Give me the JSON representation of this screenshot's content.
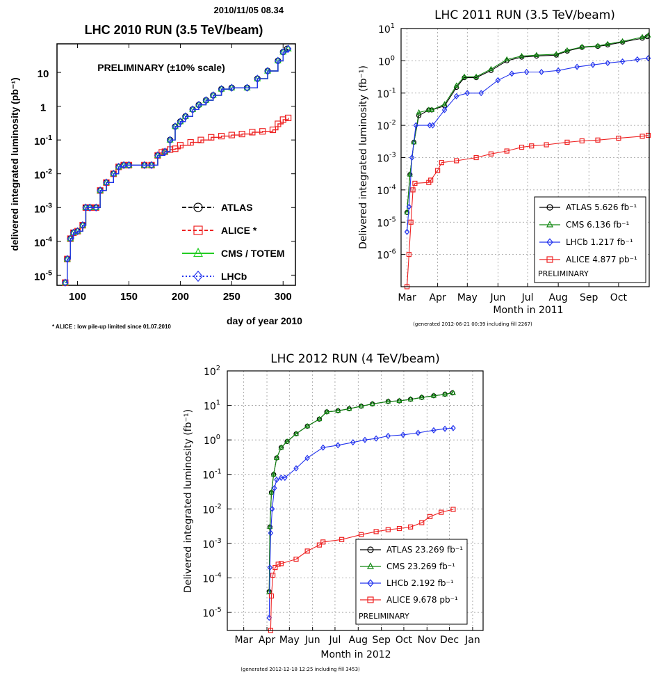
{
  "chart_data": [
    {
      "type": "line",
      "timestamp": "2010/11/05   08.34",
      "title": "LHC 2010 RUN (3.5 TeV/beam)",
      "subtitle": "PRELIMINARY (±10% scale)",
      "xlabel": "day of year 2010",
      "ylabel": "delivered integrated luminosity (pb⁻¹)",
      "footnote": "* ALICE : low pile-up limited since 01.07.2010",
      "y_scale": "log",
      "xlim": [
        80,
        312
      ],
      "ylim": [
        5e-06,
        70
      ],
      "x_ticks": [
        100,
        150,
        200,
        250,
        300
      ],
      "y_ticks": [
        {
          "value": 1e-05,
          "base": "10",
          "exp": "-5"
        },
        {
          "value": 0.0001,
          "base": "10",
          "exp": "-4"
        },
        {
          "value": 0.001,
          "base": "10",
          "exp": "-3"
        },
        {
          "value": 0.01,
          "base": "10",
          "exp": "-2"
        },
        {
          "value": 0.1,
          "base": "10",
          "exp": "-1"
        },
        {
          "value": 1,
          "base": "1",
          "exp": ""
        },
        {
          "value": 10,
          "base": "10",
          "exp": ""
        }
      ],
      "legend_position": "lower-right",
      "grid": false,
      "series": [
        {
          "name": "ATLAS",
          "color": "#000000",
          "marker": "circle",
          "x": [
            88,
            90,
            93,
            96,
            100,
            105,
            108,
            112,
            118,
            122,
            128,
            135,
            140,
            145,
            150,
            165,
            172,
            178,
            185,
            190,
            195,
            200,
            205,
            212,
            218,
            225,
            232,
            240,
            250,
            265,
            275,
            285,
            295,
            300,
            304
          ],
          "y": [
            6e-06,
            3e-05,
            0.00012,
            0.00018,
            0.0002,
            0.0003,
            0.001,
            0.001,
            0.001,
            0.0032,
            0.0055,
            0.01,
            0.016,
            0.018,
            0.018,
            0.018,
            0.018,
            0.035,
            0.045,
            0.1,
            0.25,
            0.35,
            0.5,
            0.8,
            1.1,
            1.5,
            2.1,
            3.2,
            3.5,
            3.5,
            6.5,
            11,
            22,
            40,
            50
          ]
        },
        {
          "name": "ALICE *",
          "color": "#ee2222",
          "marker": "square",
          "x": [
            88,
            90,
            93,
            96,
            100,
            105,
            108,
            112,
            118,
            122,
            128,
            135,
            140,
            145,
            150,
            165,
            172,
            178,
            182,
            185,
            190,
            195,
            200,
            210,
            220,
            230,
            240,
            250,
            260,
            270,
            280,
            290,
            295,
            300,
            305
          ],
          "y": [
            6e-06,
            3e-05,
            0.00012,
            0.00018,
            0.0002,
            0.0003,
            0.001,
            0.001,
            0.001,
            0.0032,
            0.0055,
            0.01,
            0.016,
            0.018,
            0.018,
            0.018,
            0.018,
            0.035,
            0.043,
            0.045,
            0.052,
            0.055,
            0.07,
            0.085,
            0.1,
            0.12,
            0.13,
            0.14,
            0.15,
            0.17,
            0.18,
            0.2,
            0.3,
            0.4,
            0.45
          ]
        },
        {
          "name": "CMS / TOTEM",
          "color": "#22cc22",
          "marker": "triangle",
          "x": [
            88,
            90,
            93,
            96,
            100,
            105,
            108,
            112,
            118,
            122,
            128,
            135,
            140,
            145,
            150,
            165,
            172,
            178,
            185,
            190,
            195,
            200,
            205,
            212,
            218,
            225,
            232,
            240,
            250,
            265,
            275,
            285,
            295,
            300,
            305
          ],
          "y": [
            6e-06,
            3e-05,
            0.00012,
            0.00018,
            0.0002,
            0.0003,
            0.001,
            0.001,
            0.001,
            0.0032,
            0.0055,
            0.01,
            0.016,
            0.018,
            0.018,
            0.018,
            0.018,
            0.035,
            0.045,
            0.1,
            0.25,
            0.35,
            0.5,
            0.8,
            1.1,
            1.5,
            2.1,
            3.2,
            3.5,
            3.5,
            6.5,
            11,
            22,
            40,
            50
          ]
        },
        {
          "name": "LHCb",
          "color": "#2233ee",
          "marker": "diamond",
          "x": [
            88,
            90,
            93,
            96,
            100,
            105,
            108,
            112,
            118,
            122,
            128,
            135,
            140,
            145,
            150,
            165,
            172,
            178,
            185,
            190,
            195,
            200,
            205,
            212,
            218,
            225,
            232,
            240,
            250,
            265,
            275,
            285,
            295,
            300,
            305
          ],
          "y": [
            6e-06,
            3e-05,
            0.00012,
            0.00018,
            0.0002,
            0.0003,
            0.001,
            0.001,
            0.001,
            0.0032,
            0.0055,
            0.01,
            0.016,
            0.018,
            0.018,
            0.018,
            0.018,
            0.035,
            0.045,
            0.1,
            0.25,
            0.35,
            0.5,
            0.8,
            1.1,
            1.5,
            2.1,
            3.2,
            3.5,
            3.5,
            6.5,
            11,
            22,
            40,
            50
          ]
        }
      ]
    },
    {
      "type": "line",
      "title": "LHC 2011 RUN (3.5 TeV/beam)",
      "xlabel": "Month in 2011",
      "ylabel": "Delivered integrated luminosity (fb⁻¹)",
      "footnote": "(generated 2012-06-21 00:39 including fill 2267)",
      "y_scale": "log",
      "xlim": [
        "2011-02-23",
        "2011-11-01"
      ],
      "ylim": [
        1e-07,
        10
      ],
      "x_ticks": [
        {
          "label": "Mar",
          "date": "2011-03-01"
        },
        {
          "label": "Apr",
          "date": "2011-04-01"
        },
        {
          "label": "May",
          "date": "2011-05-01"
        },
        {
          "label": "Jun",
          "date": "2011-06-01"
        },
        {
          "label": "Jul",
          "date": "2011-07-01"
        },
        {
          "label": "Aug",
          "date": "2011-08-01"
        },
        {
          "label": "Sep",
          "date": "2011-09-01"
        },
        {
          "label": "Oct",
          "date": "2011-10-01"
        }
      ],
      "y_ticks": [
        {
          "value": 1e-06,
          "base": "10",
          "exp": "-6"
        },
        {
          "value": 1e-05,
          "base": "10",
          "exp": "-5"
        },
        {
          "value": 0.0001,
          "base": "10",
          "exp": "-4"
        },
        {
          "value": 0.001,
          "base": "10",
          "exp": "-3"
        },
        {
          "value": 0.01,
          "base": "10",
          "exp": "-2"
        },
        {
          "value": 0.1,
          "base": "10",
          "exp": "-1"
        },
        {
          "value": 1,
          "base": "10",
          "exp": "0"
        },
        {
          "value": 10,
          "base": "10",
          "exp": "1"
        }
      ],
      "legend_position": "lower-right",
      "legend_note": "PRELIMINARY",
      "grid": true,
      "series": [
        {
          "name": "ATLAS 5.626 fb⁻¹",
          "color": "#000000",
          "marker": "circle",
          "x": [
            "2011-03-01",
            "2011-03-04",
            "2011-03-08",
            "2011-03-13",
            "2011-03-23",
            "2011-03-26",
            "2011-04-08",
            "2011-04-20",
            "2011-04-28",
            "2011-05-10",
            "2011-05-25",
            "2011-06-10",
            "2011-06-25",
            "2011-07-10",
            "2011-07-30",
            "2011-08-10",
            "2011-08-25",
            "2011-09-10",
            "2011-09-20",
            "2011-10-05",
            "2011-10-25",
            "2011-10-30"
          ],
          "y": [
            2e-05,
            0.0003,
            0.003,
            0.02,
            0.03,
            0.03,
            0.04,
            0.15,
            0.3,
            0.3,
            0.5,
            1.0,
            1.3,
            1.4,
            1.5,
            2.0,
            2.6,
            2.8,
            3.1,
            3.8,
            5.0,
            5.6
          ]
        },
        {
          "name": "CMS 6.136 fb⁻¹",
          "color": "#118811",
          "marker": "triangle",
          "x": [
            "2011-03-01",
            "2011-03-04",
            "2011-03-08",
            "2011-03-13",
            "2011-03-23",
            "2011-03-26",
            "2011-04-08",
            "2011-04-20",
            "2011-04-28",
            "2011-05-10",
            "2011-05-25",
            "2011-06-10",
            "2011-06-25",
            "2011-07-10",
            "2011-07-30",
            "2011-08-10",
            "2011-08-25",
            "2011-09-10",
            "2011-09-20",
            "2011-10-05",
            "2011-10-25",
            "2011-10-31"
          ],
          "y": [
            2e-05,
            0.0003,
            0.003,
            0.025,
            0.03,
            0.03,
            0.045,
            0.17,
            0.32,
            0.32,
            0.55,
            1.1,
            1.4,
            1.5,
            1.6,
            2.1,
            2.7,
            2.9,
            3.3,
            4.0,
            5.4,
            6.1
          ]
        },
        {
          "name": "LHCb 1.217 fb⁻¹",
          "color": "#2233ee",
          "marker": "diamond",
          "x": [
            "2011-03-01",
            "2011-03-03",
            "2011-03-06",
            "2011-03-10",
            "2011-03-24",
            "2011-03-27",
            "2011-04-08",
            "2011-04-20",
            "2011-05-01",
            "2011-05-15",
            "2011-06-01",
            "2011-06-15",
            "2011-06-30",
            "2011-07-15",
            "2011-08-01",
            "2011-08-20",
            "2011-09-05",
            "2011-09-20",
            "2011-10-05",
            "2011-10-20",
            "2011-10-31"
          ],
          "y": [
            5e-06,
            3e-05,
            0.001,
            0.01,
            0.01,
            0.01,
            0.03,
            0.08,
            0.1,
            0.1,
            0.25,
            0.4,
            0.45,
            0.45,
            0.5,
            0.65,
            0.75,
            0.85,
            0.95,
            1.1,
            1.2
          ]
        },
        {
          "name": "ALICE 4.877 pb⁻¹",
          "color": "#ee2222",
          "marker": "square",
          "x": [
            "2011-03-01",
            "2011-03-03",
            "2011-03-05",
            "2011-03-07",
            "2011-03-09",
            "2011-03-23",
            "2011-03-25",
            "2011-04-01",
            "2011-04-05",
            "2011-04-20",
            "2011-05-10",
            "2011-05-25",
            "2011-06-10",
            "2011-06-25",
            "2011-07-05",
            "2011-07-20",
            "2011-08-10",
            "2011-08-25",
            "2011-09-10",
            "2011-10-01",
            "2011-10-25",
            "2011-10-31"
          ],
          "y": [
            1e-07,
            1e-06,
            1e-05,
            0.0001,
            0.00016,
            0.00017,
            0.0002,
            0.0004,
            0.0007,
            0.0008,
            0.001,
            0.0013,
            0.0016,
            0.0021,
            0.0023,
            0.0025,
            0.003,
            0.0033,
            0.0035,
            0.004,
            0.0046,
            0.0049
          ]
        }
      ]
    },
    {
      "type": "line",
      "title": "LHC 2012 RUN (4 TeV/beam)",
      "xlabel": "Month in 2012",
      "ylabel": "Delivered integrated luminosity (fb⁻¹)",
      "footnote": "(generated 2012-12-18 12:25 including fill 3453)",
      "y_scale": "log",
      "xlim": [
        "2012-02-08",
        "2013-01-15"
      ],
      "ylim": [
        3e-06,
        100
      ],
      "x_ticks": [
        {
          "label": "Mar",
          "date": "2012-03-01"
        },
        {
          "label": "Apr",
          "date": "2012-04-01"
        },
        {
          "label": "May",
          "date": "2012-05-01"
        },
        {
          "label": "Jun",
          "date": "2012-06-01"
        },
        {
          "label": "Jul",
          "date": "2012-07-01"
        },
        {
          "label": "Aug",
          "date": "2012-08-01"
        },
        {
          "label": "Sep",
          "date": "2012-09-01"
        },
        {
          "label": "Oct",
          "date": "2012-10-01"
        },
        {
          "label": "Nov",
          "date": "2012-11-01"
        },
        {
          "label": "Dec",
          "date": "2012-12-01"
        },
        {
          "label": "Jan",
          "date": "2013-01-01"
        }
      ],
      "y_ticks": [
        {
          "value": 1e-05,
          "base": "10",
          "exp": "-5"
        },
        {
          "value": 0.0001,
          "base": "10",
          "exp": "-4"
        },
        {
          "value": 0.001,
          "base": "10",
          "exp": "-3"
        },
        {
          "value": 0.01,
          "base": "10",
          "exp": "-2"
        },
        {
          "value": 0.1,
          "base": "10",
          "exp": "-1"
        },
        {
          "value": 1,
          "base": "10",
          "exp": "0"
        },
        {
          "value": 10,
          "base": "10",
          "exp": "1"
        },
        {
          "value": 100,
          "base": "10",
          "exp": "2"
        }
      ],
      "legend_position": "lower-right",
      "legend_note": "PRELIMINARY",
      "grid": true,
      "series": [
        {
          "name": "ATLAS 23.269 fb⁻¹",
          "color": "#000000",
          "marker": "circle",
          "x": [
            "2012-04-04",
            "2012-04-05",
            "2012-04-07",
            "2012-04-10",
            "2012-04-14",
            "2012-04-20",
            "2012-04-28",
            "2012-05-10",
            "2012-05-25",
            "2012-06-10",
            "2012-06-20",
            "2012-07-05",
            "2012-07-20",
            "2012-08-05",
            "2012-08-20",
            "2012-09-10",
            "2012-09-25",
            "2012-10-10",
            "2012-10-25",
            "2012-11-10",
            "2012-11-25",
            "2012-12-05"
          ],
          "y": [
            4e-05,
            0.003,
            0.03,
            0.1,
            0.3,
            0.6,
            0.9,
            1.5,
            2.5,
            4.0,
            6.5,
            7.0,
            8.0,
            9.5,
            11,
            13,
            13.5,
            15,
            17,
            19,
            21,
            23
          ]
        },
        {
          "name": "CMS 23.269 fb⁻¹",
          "color": "#118811",
          "marker": "triangle",
          "x": [
            "2012-04-04",
            "2012-04-05",
            "2012-04-07",
            "2012-04-10",
            "2012-04-14",
            "2012-04-20",
            "2012-04-28",
            "2012-05-10",
            "2012-05-25",
            "2012-06-10",
            "2012-06-20",
            "2012-07-05",
            "2012-07-20",
            "2012-08-05",
            "2012-08-20",
            "2012-09-10",
            "2012-09-25",
            "2012-10-10",
            "2012-10-25",
            "2012-11-10",
            "2012-11-25",
            "2012-12-06"
          ],
          "y": [
            4e-05,
            0.003,
            0.03,
            0.1,
            0.3,
            0.6,
            0.9,
            1.5,
            2.5,
            4.0,
            6.5,
            7.0,
            8.0,
            9.5,
            11,
            13,
            13.5,
            15,
            17,
            19,
            21,
            23
          ]
        },
        {
          "name": "LHCb 2.192 fb⁻¹",
          "color": "#2233ee",
          "marker": "diamond",
          "x": [
            "2012-04-04",
            "2012-04-05",
            "2012-04-06",
            "2012-04-08",
            "2012-04-11",
            "2012-04-14",
            "2012-04-20",
            "2012-04-25",
            "2012-05-10",
            "2012-05-25",
            "2012-06-15",
            "2012-07-05",
            "2012-07-25",
            "2012-08-10",
            "2012-08-25",
            "2012-09-10",
            "2012-09-30",
            "2012-10-20",
            "2012-11-10",
            "2012-11-25",
            "2012-12-06"
          ],
          "y": [
            7e-06,
            0.0002,
            0.002,
            0.01,
            0.04,
            0.07,
            0.08,
            0.08,
            0.15,
            0.3,
            0.6,
            0.7,
            0.85,
            1.0,
            1.1,
            1.3,
            1.4,
            1.6,
            1.9,
            2.1,
            2.2
          ]
        },
        {
          "name": "ALICE 9.678 pb⁻¹",
          "color": "#ee2222",
          "marker": "square",
          "x": [
            "2012-04-06",
            "2012-04-07",
            "2012-04-09",
            "2012-04-12",
            "2012-04-16",
            "2012-04-20",
            "2012-05-10",
            "2012-05-25",
            "2012-06-10",
            "2012-06-15",
            "2012-07-10",
            "2012-08-05",
            "2012-08-25",
            "2012-09-10",
            "2012-09-25",
            "2012-10-10",
            "2012-10-25",
            "2012-11-05",
            "2012-11-20",
            "2012-12-06"
          ],
          "y": [
            3e-06,
            3e-05,
            0.00012,
            0.0002,
            0.00025,
            0.00026,
            0.00035,
            0.0006,
            0.0009,
            0.0011,
            0.0013,
            0.0018,
            0.0022,
            0.0025,
            0.0027,
            0.003,
            0.004,
            0.006,
            0.008,
            0.0097
          ]
        }
      ]
    }
  ]
}
